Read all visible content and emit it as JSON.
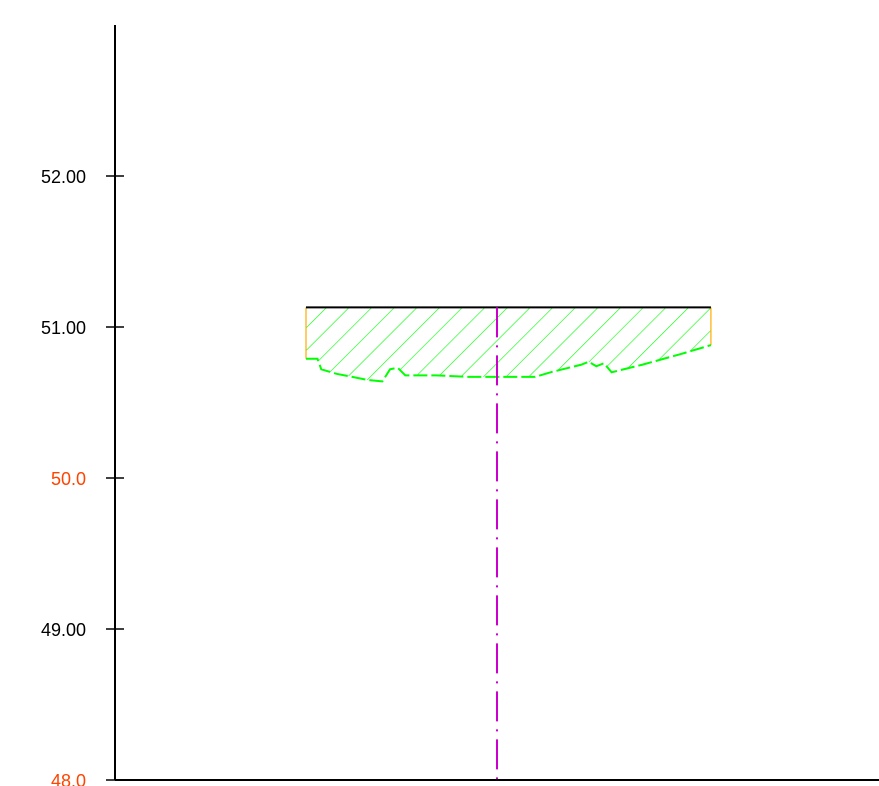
{
  "colors": {
    "axis": "#000000",
    "label_normal": "#000000",
    "label_highlight": "#ff4400",
    "hatch": "#00ff00",
    "section_edge": "#ffaa00",
    "centerline": "#cc00cc",
    "top_line": "#000000"
  },
  "chart_data": {
    "type": "cross-section",
    "y_axis": {
      "ylim": [
        48.0,
        53.0
      ],
      "ticks": [
        {
          "value": 52.0,
          "label": "52.00",
          "highlight": false
        },
        {
          "value": 51.0,
          "label": "51.00",
          "highlight": false
        },
        {
          "value": 50.0,
          "label": "50.0",
          "highlight": true
        },
        {
          "value": 49.0,
          "label": "49.00",
          "highlight": false
        },
        {
          "value": 48.0,
          "label": "48.0",
          "highlight": true
        }
      ]
    },
    "x_axis": {
      "xlim": [
        0,
        100
      ]
    },
    "section": {
      "design_level": 51.13,
      "x_start": 25,
      "x_end": 78,
      "ground_profile": [
        [
          25.0,
          50.79
        ],
        [
          26.5,
          50.79
        ],
        [
          27.0,
          50.72
        ],
        [
          29.0,
          50.69
        ],
        [
          33.0,
          50.65
        ],
        [
          35.0,
          50.64
        ],
        [
          36.0,
          50.72
        ],
        [
          37.0,
          50.73
        ],
        [
          38.0,
          50.68
        ],
        [
          42.0,
          50.68
        ],
        [
          46.0,
          50.67
        ],
        [
          51.0,
          50.67
        ],
        [
          55.0,
          50.67
        ],
        [
          57.0,
          50.7
        ],
        [
          61.0,
          50.75
        ],
        [
          62.0,
          50.77
        ],
        [
          63.0,
          50.74
        ],
        [
          64.0,
          50.76
        ],
        [
          65.0,
          50.7
        ],
        [
          69.0,
          50.75
        ],
        [
          74.0,
          50.82
        ],
        [
          78.0,
          50.88
        ]
      ]
    },
    "centerline": {
      "x": 50.0
    }
  }
}
